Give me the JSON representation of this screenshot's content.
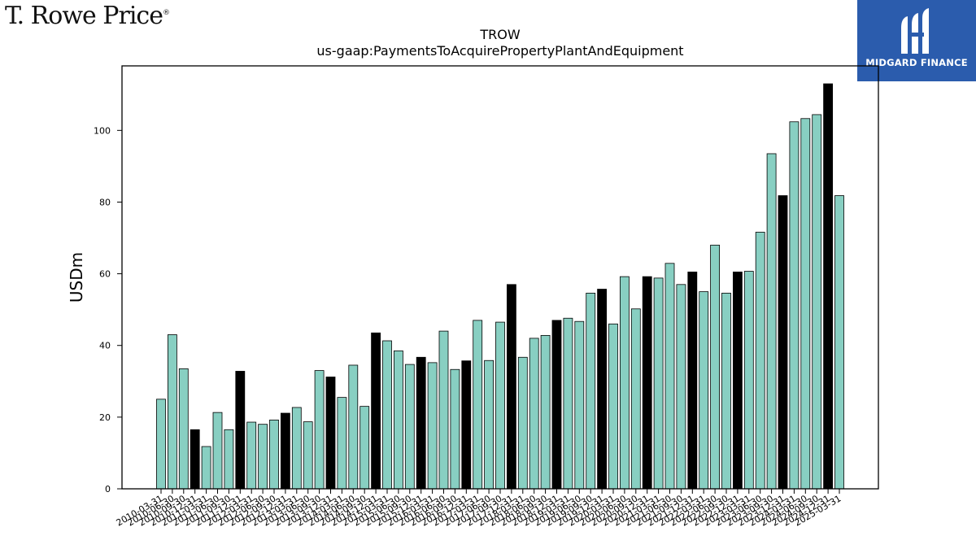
{
  "branding": {
    "left_logo_text": "T. Rowe Price",
    "left_logo_mark": "®",
    "right_logo_text": "MIDGARD FINANCE",
    "right_logo_color": "#2b5cad"
  },
  "chart_data": {
    "type": "bar",
    "title": "TROW",
    "subtitle": "us-gaap:PaymentsToAcquirePropertyPlantAndEquipment",
    "xlabel": "",
    "ylabel": "USDm",
    "ylim": [
      0,
      118
    ],
    "yticks": [
      0,
      20,
      40,
      60,
      80,
      100
    ],
    "grid": false,
    "colors": {
      "quarter": "#88cfc2",
      "annual": "#000000",
      "edge": "#000000"
    },
    "categories": [
      "2010-03-31",
      "2010-06-30",
      "2010-09-30",
      "2010-12-31",
      "2011-03-31",
      "2011-06-30",
      "2011-09-30",
      "2011-12-31",
      "2012-03-31",
      "2012-06-30",
      "2012-09-30",
      "2012-12-31",
      "2013-03-31",
      "2013-06-30",
      "2013-09-30",
      "2013-12-31",
      "2014-03-31",
      "2014-06-30",
      "2014-09-30",
      "2014-12-31",
      "2015-03-31",
      "2015-06-30",
      "2015-09-30",
      "2015-12-31",
      "2016-03-31",
      "2016-06-30",
      "2016-09-30",
      "2016-12-31",
      "2017-03-31",
      "2017-06-30",
      "2017-09-30",
      "2017-12-31",
      "2018-03-31",
      "2018-06-30",
      "2018-09-30",
      "2018-12-31",
      "2019-03-31",
      "2019-06-30",
      "2019-09-30",
      "2019-12-31",
      "2020-03-31",
      "2020-06-30",
      "2020-09-30",
      "2020-12-31",
      "2021-03-31",
      "2021-06-30",
      "2021-09-30",
      "2021-12-31",
      "2022-03-31",
      "2022-06-30",
      "2022-09-30",
      "2022-12-31",
      "2023-03-31",
      "2023-06-30",
      "2023-09-30",
      "2023-12-31",
      "2024-03-31",
      "2024-06-30",
      "2024-09-30",
      "2024-12-31",
      "2025-03-31"
    ],
    "values": [
      25.0,
      43.0,
      33.5,
      16.5,
      11.8,
      21.3,
      16.5,
      32.8,
      18.6,
      18.0,
      19.2,
      21.1,
      22.7,
      18.7,
      33.0,
      31.2,
      25.5,
      34.5,
      23.0,
      43.5,
      41.3,
      38.5,
      34.7,
      36.7,
      35.2,
      44.0,
      33.3,
      35.7,
      47.0,
      35.8,
      46.5,
      57.0,
      36.7,
      42.0,
      42.8,
      47.0,
      47.6,
      46.7,
      54.6,
      55.7,
      46.0,
      59.2,
      50.2,
      59.2,
      58.8,
      62.9,
      57.0,
      60.5,
      55.0,
      68.0,
      54.6,
      60.5,
      60.7,
      71.6,
      93.5,
      81.8,
      102.4,
      103.3,
      104.4,
      113.0,
      81.8
    ],
    "annual_flags": [
      0,
      0,
      0,
      1,
      0,
      0,
      0,
      1,
      0,
      0,
      0,
      1,
      0,
      0,
      0,
      1,
      0,
      0,
      0,
      1,
      0,
      0,
      0,
      1,
      0,
      0,
      0,
      1,
      0,
      0,
      0,
      1,
      0,
      0,
      0,
      1,
      0,
      0,
      0,
      1,
      0,
      0,
      0,
      1,
      0,
      0,
      0,
      1,
      0,
      0,
      0,
      1,
      0,
      0,
      0,
      1,
      0,
      0,
      0,
      1,
      0
    ]
  }
}
